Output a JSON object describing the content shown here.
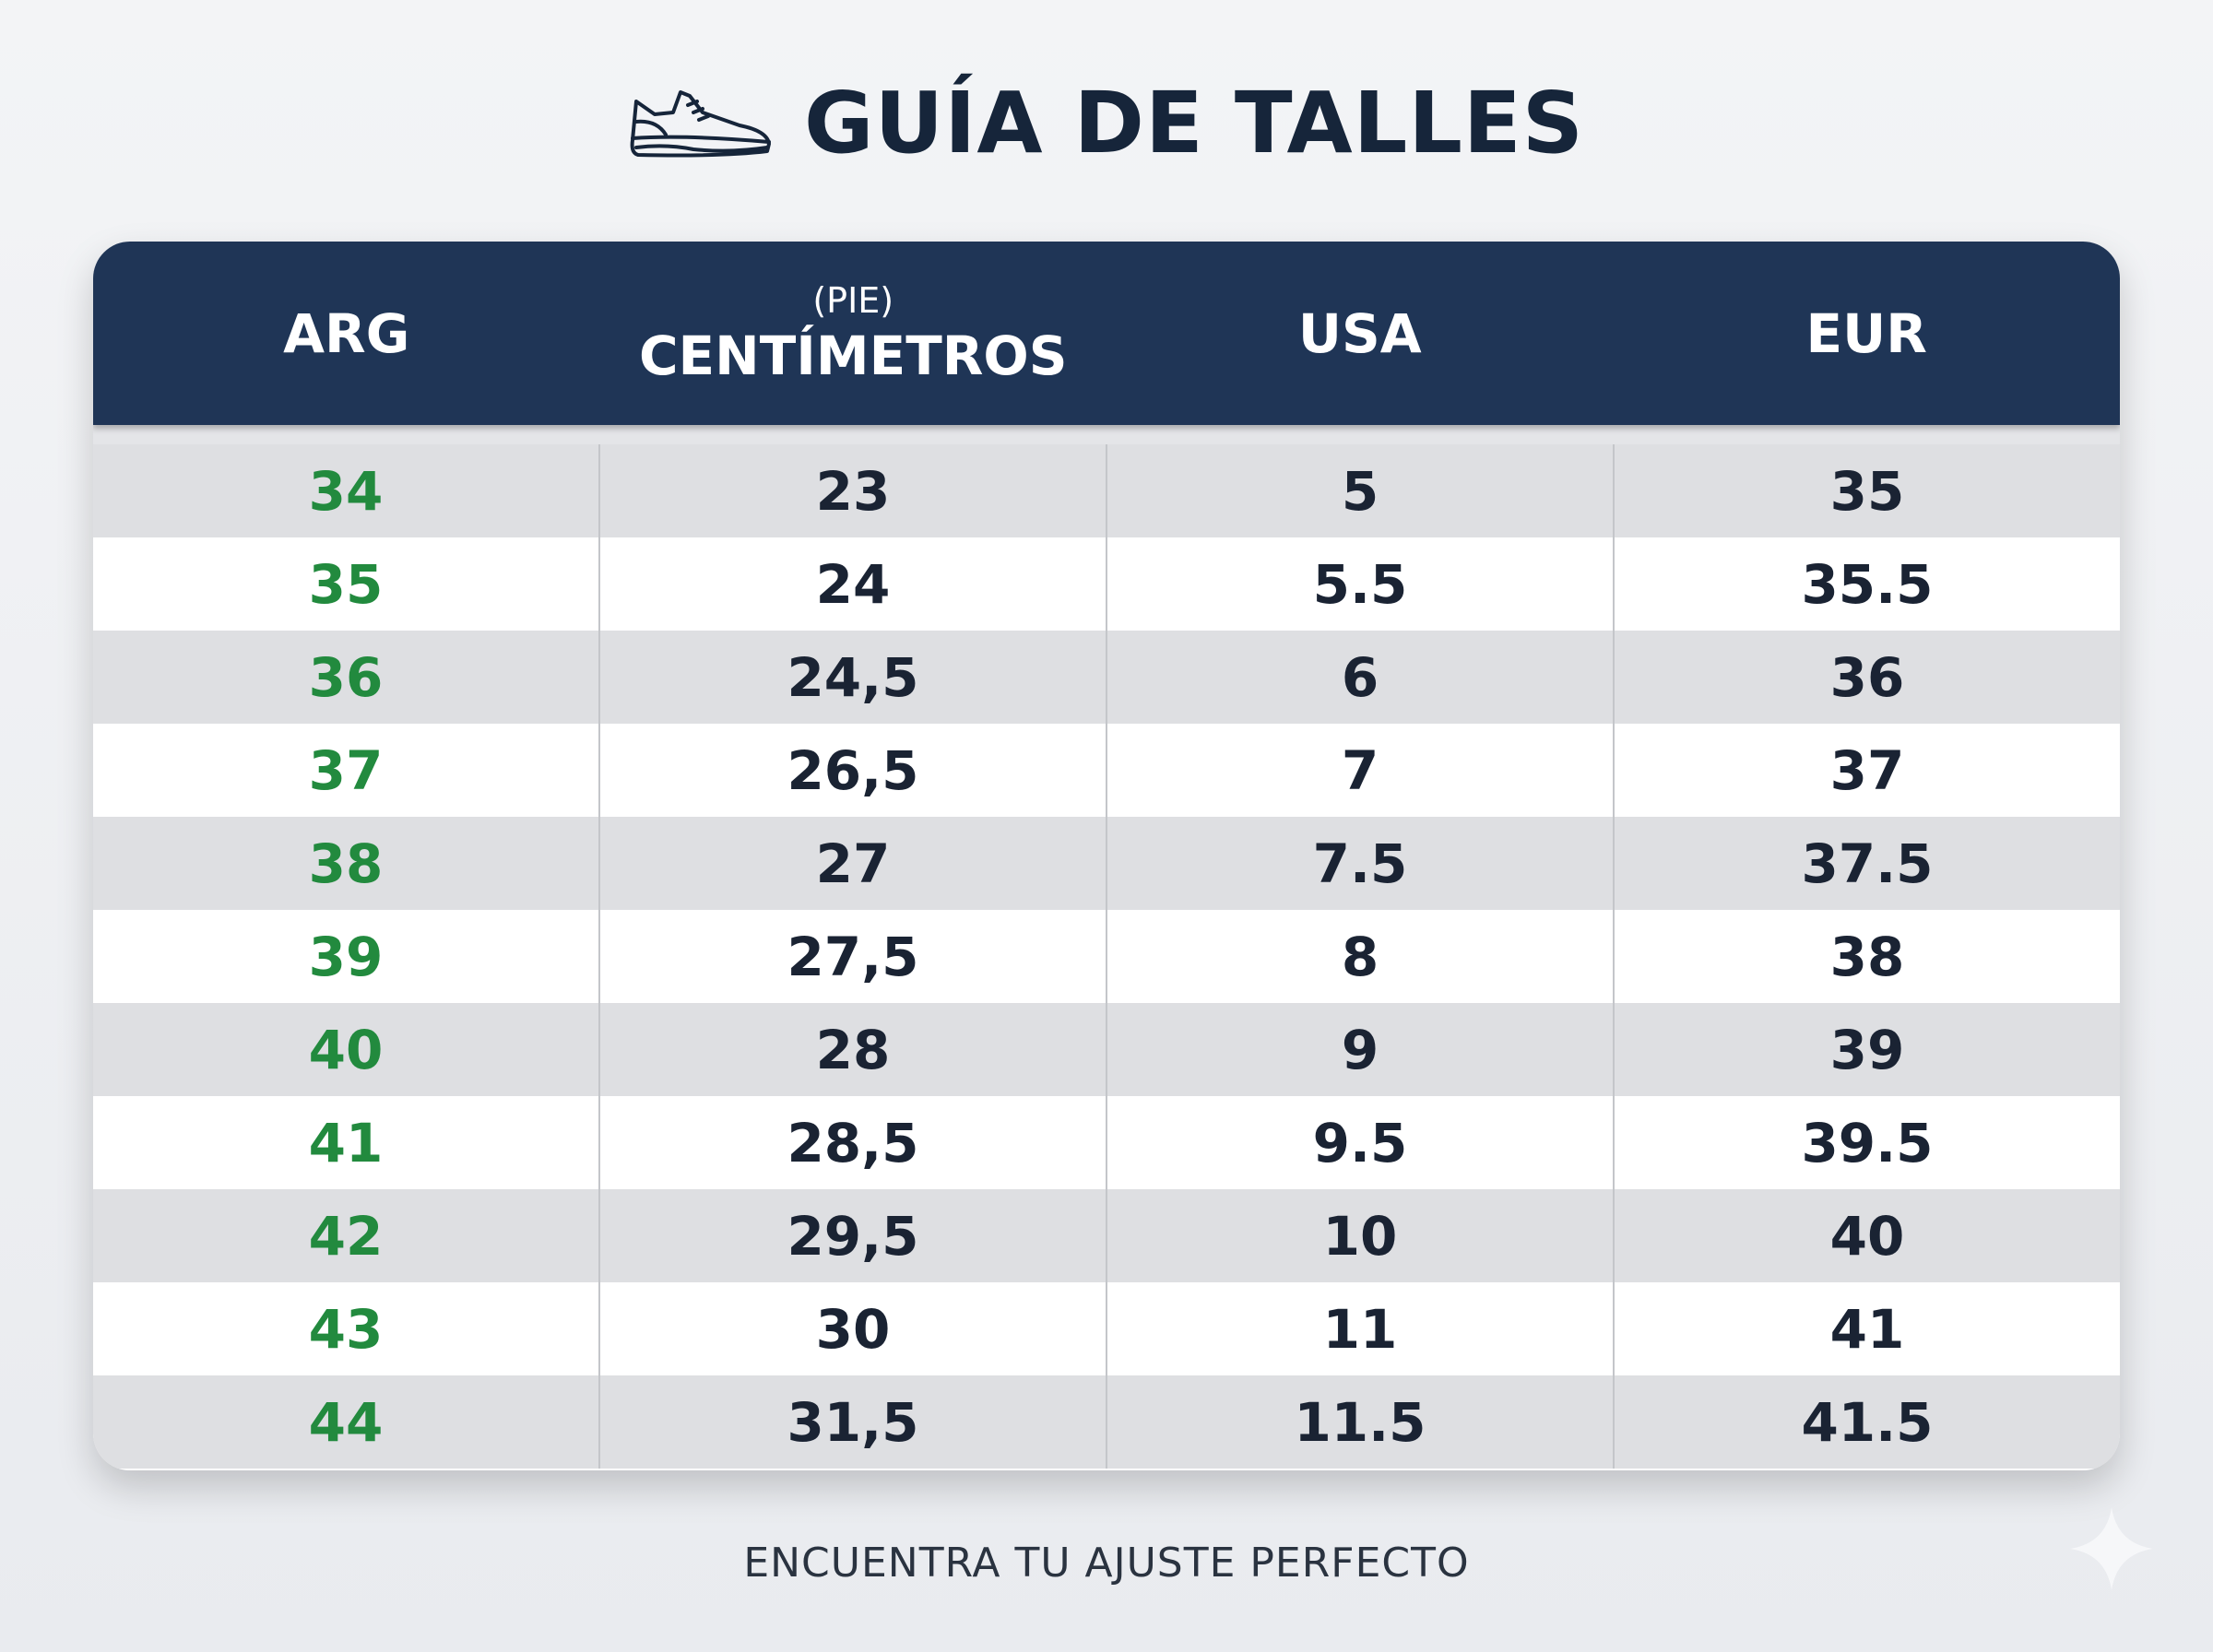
{
  "title": "GUÍA DE TALLES",
  "icons": {
    "title_icon": "sneaker-icon",
    "corner_icon": "sparkle-icon"
  },
  "colors": {
    "header_bg": "#1f3556",
    "arg_text": "#228a3e",
    "value_text": "#1a2333"
  },
  "table": {
    "headers": [
      {
        "sub": "",
        "label": "ARG"
      },
      {
        "sub": "(PIE)",
        "label": "CENTÍMETROS"
      },
      {
        "sub": "",
        "label": "USA"
      },
      {
        "sub": "",
        "label": "EUR"
      }
    ],
    "rows": [
      [
        "34",
        "23",
        "5",
        "35"
      ],
      [
        "35",
        "24",
        "5.5",
        "35.5"
      ],
      [
        "36",
        "24,5",
        "6",
        "36"
      ],
      [
        "37",
        "26,5",
        "7",
        "37"
      ],
      [
        "38",
        "27",
        "7.5",
        "37.5"
      ],
      [
        "39",
        "27,5",
        "8",
        "38"
      ],
      [
        "40",
        "28",
        "9",
        "39"
      ],
      [
        "41",
        "28,5",
        "9.5",
        "39.5"
      ],
      [
        "42",
        "29,5",
        "10",
        "40"
      ],
      [
        "43",
        "30",
        "11",
        "41"
      ],
      [
        "44",
        "31,5",
        "11.5",
        "41.5"
      ]
    ]
  },
  "footer": "ENCUENTRA TU AJUSTE PERFECTO"
}
